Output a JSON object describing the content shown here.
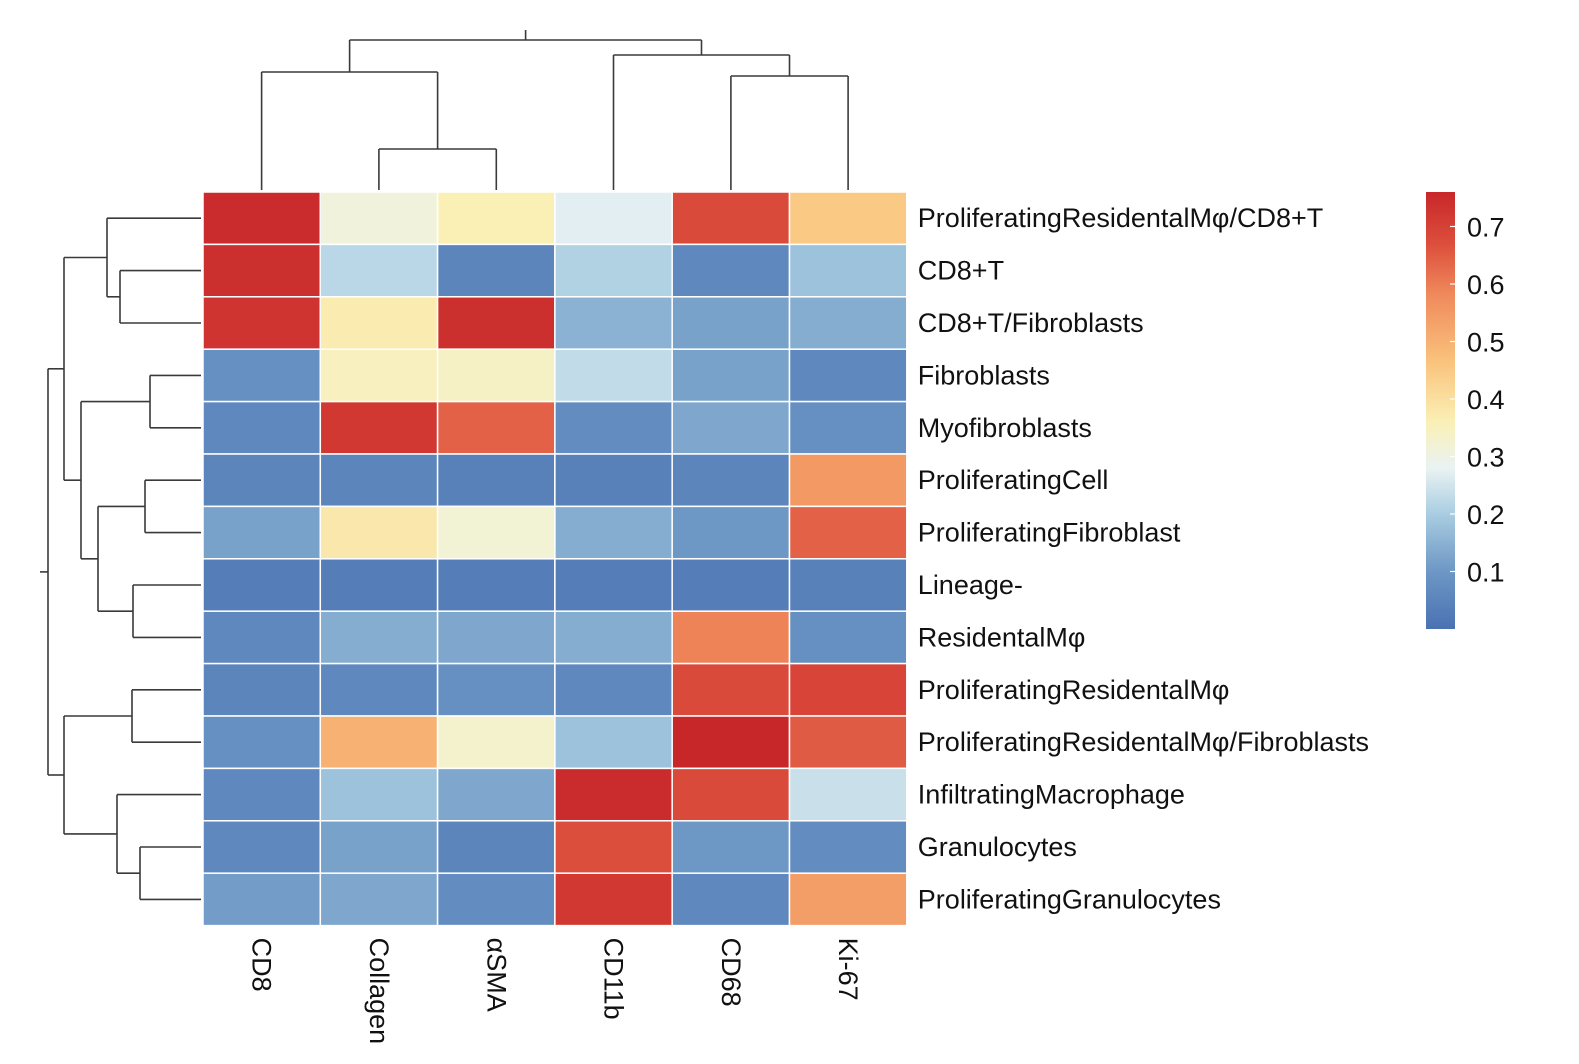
{
  "chart_data": {
    "type": "heatmap",
    "title": "",
    "xlabel": "",
    "ylabel": "",
    "columns": [
      "CD8",
      "Collagen",
      "αSMA",
      "CD11b",
      "CD68",
      "Ki-67"
    ],
    "rows": [
      "ProliferatingResidentalMφ/CD8+T",
      "CD8+T",
      "CD8+T/Fibroblasts",
      "Fibroblasts",
      "Myofibroblasts",
      "ProliferatingCell",
      "ProliferatingFibroblast",
      "Lineage-",
      "ResidentalMφ",
      "ProliferatingResidentalMφ",
      "ProliferatingResidentalMφ/Fibroblasts",
      "InfiltratingMacrophage",
      "Granulocytes",
      "ProliferatingGranulocytes"
    ],
    "values": [
      [
        0.75,
        0.31,
        0.36,
        0.27,
        0.68,
        0.45
      ],
      [
        0.74,
        0.22,
        0.05,
        0.21,
        0.06,
        0.18
      ],
      [
        0.73,
        0.37,
        0.74,
        0.15,
        0.12,
        0.14
      ],
      [
        0.08,
        0.35,
        0.34,
        0.23,
        0.12,
        0.06
      ],
      [
        0.06,
        0.72,
        0.64,
        0.07,
        0.13,
        0.08
      ],
      [
        0.05,
        0.05,
        0.04,
        0.04,
        0.05,
        0.55
      ],
      [
        0.12,
        0.38,
        0.32,
        0.14,
        0.1,
        0.64
      ],
      [
        0.03,
        0.03,
        0.03,
        0.03,
        0.03,
        0.04
      ],
      [
        0.06,
        0.14,
        0.13,
        0.14,
        0.59,
        0.08
      ],
      [
        0.05,
        0.06,
        0.08,
        0.06,
        0.68,
        0.69
      ],
      [
        0.08,
        0.5,
        0.33,
        0.18,
        0.76,
        0.65
      ],
      [
        0.06,
        0.18,
        0.13,
        0.75,
        0.68,
        0.24
      ],
      [
        0.06,
        0.12,
        0.05,
        0.67,
        0.1,
        0.07
      ],
      [
        0.11,
        0.13,
        0.07,
        0.72,
        0.06,
        0.54
      ]
    ],
    "colorbar": {
      "ticks": [
        0.1,
        0.2,
        0.3,
        0.4,
        0.5,
        0.6,
        0.7
      ],
      "tick_labels": [
        "0.1",
        "0.2",
        "0.3",
        "0.4",
        "0.5",
        "0.6",
        "0.7"
      ],
      "min": 0.0,
      "max": 0.76,
      "colors": [
        "#4a72b3",
        "#6d97c5",
        "#a9cde1",
        "#eaf3f3",
        "#faf0b6",
        "#fac57e",
        "#f08a5c",
        "#dc4e3c",
        "#c8272a"
      ],
      "stops": [
        0.0,
        0.1,
        0.2,
        0.28,
        0.36,
        0.46,
        0.58,
        0.67,
        0.76
      ]
    },
    "row_dendrogram": true,
    "col_dendrogram": true
  }
}
